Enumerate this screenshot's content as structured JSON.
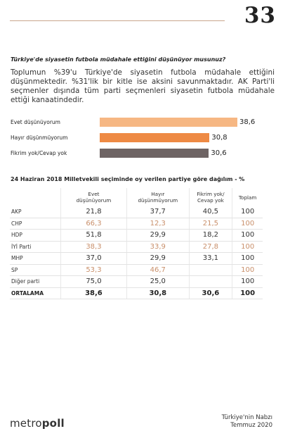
{
  "page_number": "33",
  "question": "Türkiye'de siyasetin futbola müdahale ettiğini düşünüyor musunuz?",
  "summary": "Toplumun %39'u Türkiye'de siyasetin futbola müdahale ettiğini düşünmektedir. %31'lik bir kitle ise aksini savunmaktadır. AK Parti'li seçmenler dışında tüm parti seçmenleri siyasetin futbola müdahale ettiği kanaatindedir.",
  "colors": {
    "evet": "#f6b783",
    "hayir": "#ee8a44",
    "fikrim_yok": "#6e6464",
    "orange_text": "#c98f6a"
  },
  "chart_data": [
    {
      "type": "bar",
      "orientation": "horizontal",
      "categories": [
        "Evet düşünüyorum",
        "Hayır düşünmüyorum",
        "Fikrim yok/Cevap yok"
      ],
      "values": [
        38.6,
        30.8,
        30.6
      ],
      "value_labels": [
        "38,6",
        "30,8",
        "30,6"
      ],
      "title": "Türkiye'de siyasetin futbola müdahale ettiğini düşünüyor musunuz?",
      "xlim": [
        0,
        40
      ]
    },
    {
      "type": "table",
      "title": "24 Haziran 2018 Milletvekili seçiminde oy verilen partiye göre dağılım - %",
      "columns": [
        "",
        "Evet düşünüyorum",
        "Hayır düşünmüyorum",
        "Fikrim yok/ Cevap yok",
        "Toplam"
      ],
      "rows": [
        {
          "party": "AKP",
          "values": [
            "21,8",
            "37,7",
            "40,5",
            "100"
          ],
          "highlight": [
            false,
            false,
            false,
            false
          ]
        },
        {
          "party": "CHP",
          "values": [
            "66,3",
            "12,3",
            "21,5",
            "100"
          ],
          "highlight": [
            true,
            true,
            true,
            true
          ]
        },
        {
          "party": "HDP",
          "values": [
            "51,8",
            "29,9",
            "18,2",
            "100"
          ],
          "highlight": [
            false,
            false,
            false,
            false
          ]
        },
        {
          "party": "İYİ Parti",
          "values": [
            "38,3",
            "33,9",
            "27,8",
            "100"
          ],
          "highlight": [
            true,
            true,
            true,
            true
          ]
        },
        {
          "party": "MHP",
          "values": [
            "37,0",
            "29,9",
            "33,1",
            "100"
          ],
          "highlight": [
            false,
            false,
            false,
            false
          ]
        },
        {
          "party": "SP",
          "values": [
            "53,3",
            "46,7",
            "",
            "100"
          ],
          "highlight": [
            true,
            true,
            false,
            true
          ]
        },
        {
          "party": "Diğer parti",
          "values": [
            "75,0",
            "25,0",
            "",
            "100"
          ],
          "highlight": [
            false,
            false,
            false,
            false
          ]
        },
        {
          "party": "ORTALAMA",
          "values": [
            "38,6",
            "30,8",
            "30,6",
            "100"
          ],
          "highlight": [
            false,
            false,
            false,
            false
          ],
          "bold": true
        }
      ]
    }
  ],
  "brand": {
    "part1": "metro",
    "part2": "poll"
  },
  "footer": {
    "line1": "Türkiye'nin Nabzı",
    "line2": "Temmuz 2020"
  }
}
